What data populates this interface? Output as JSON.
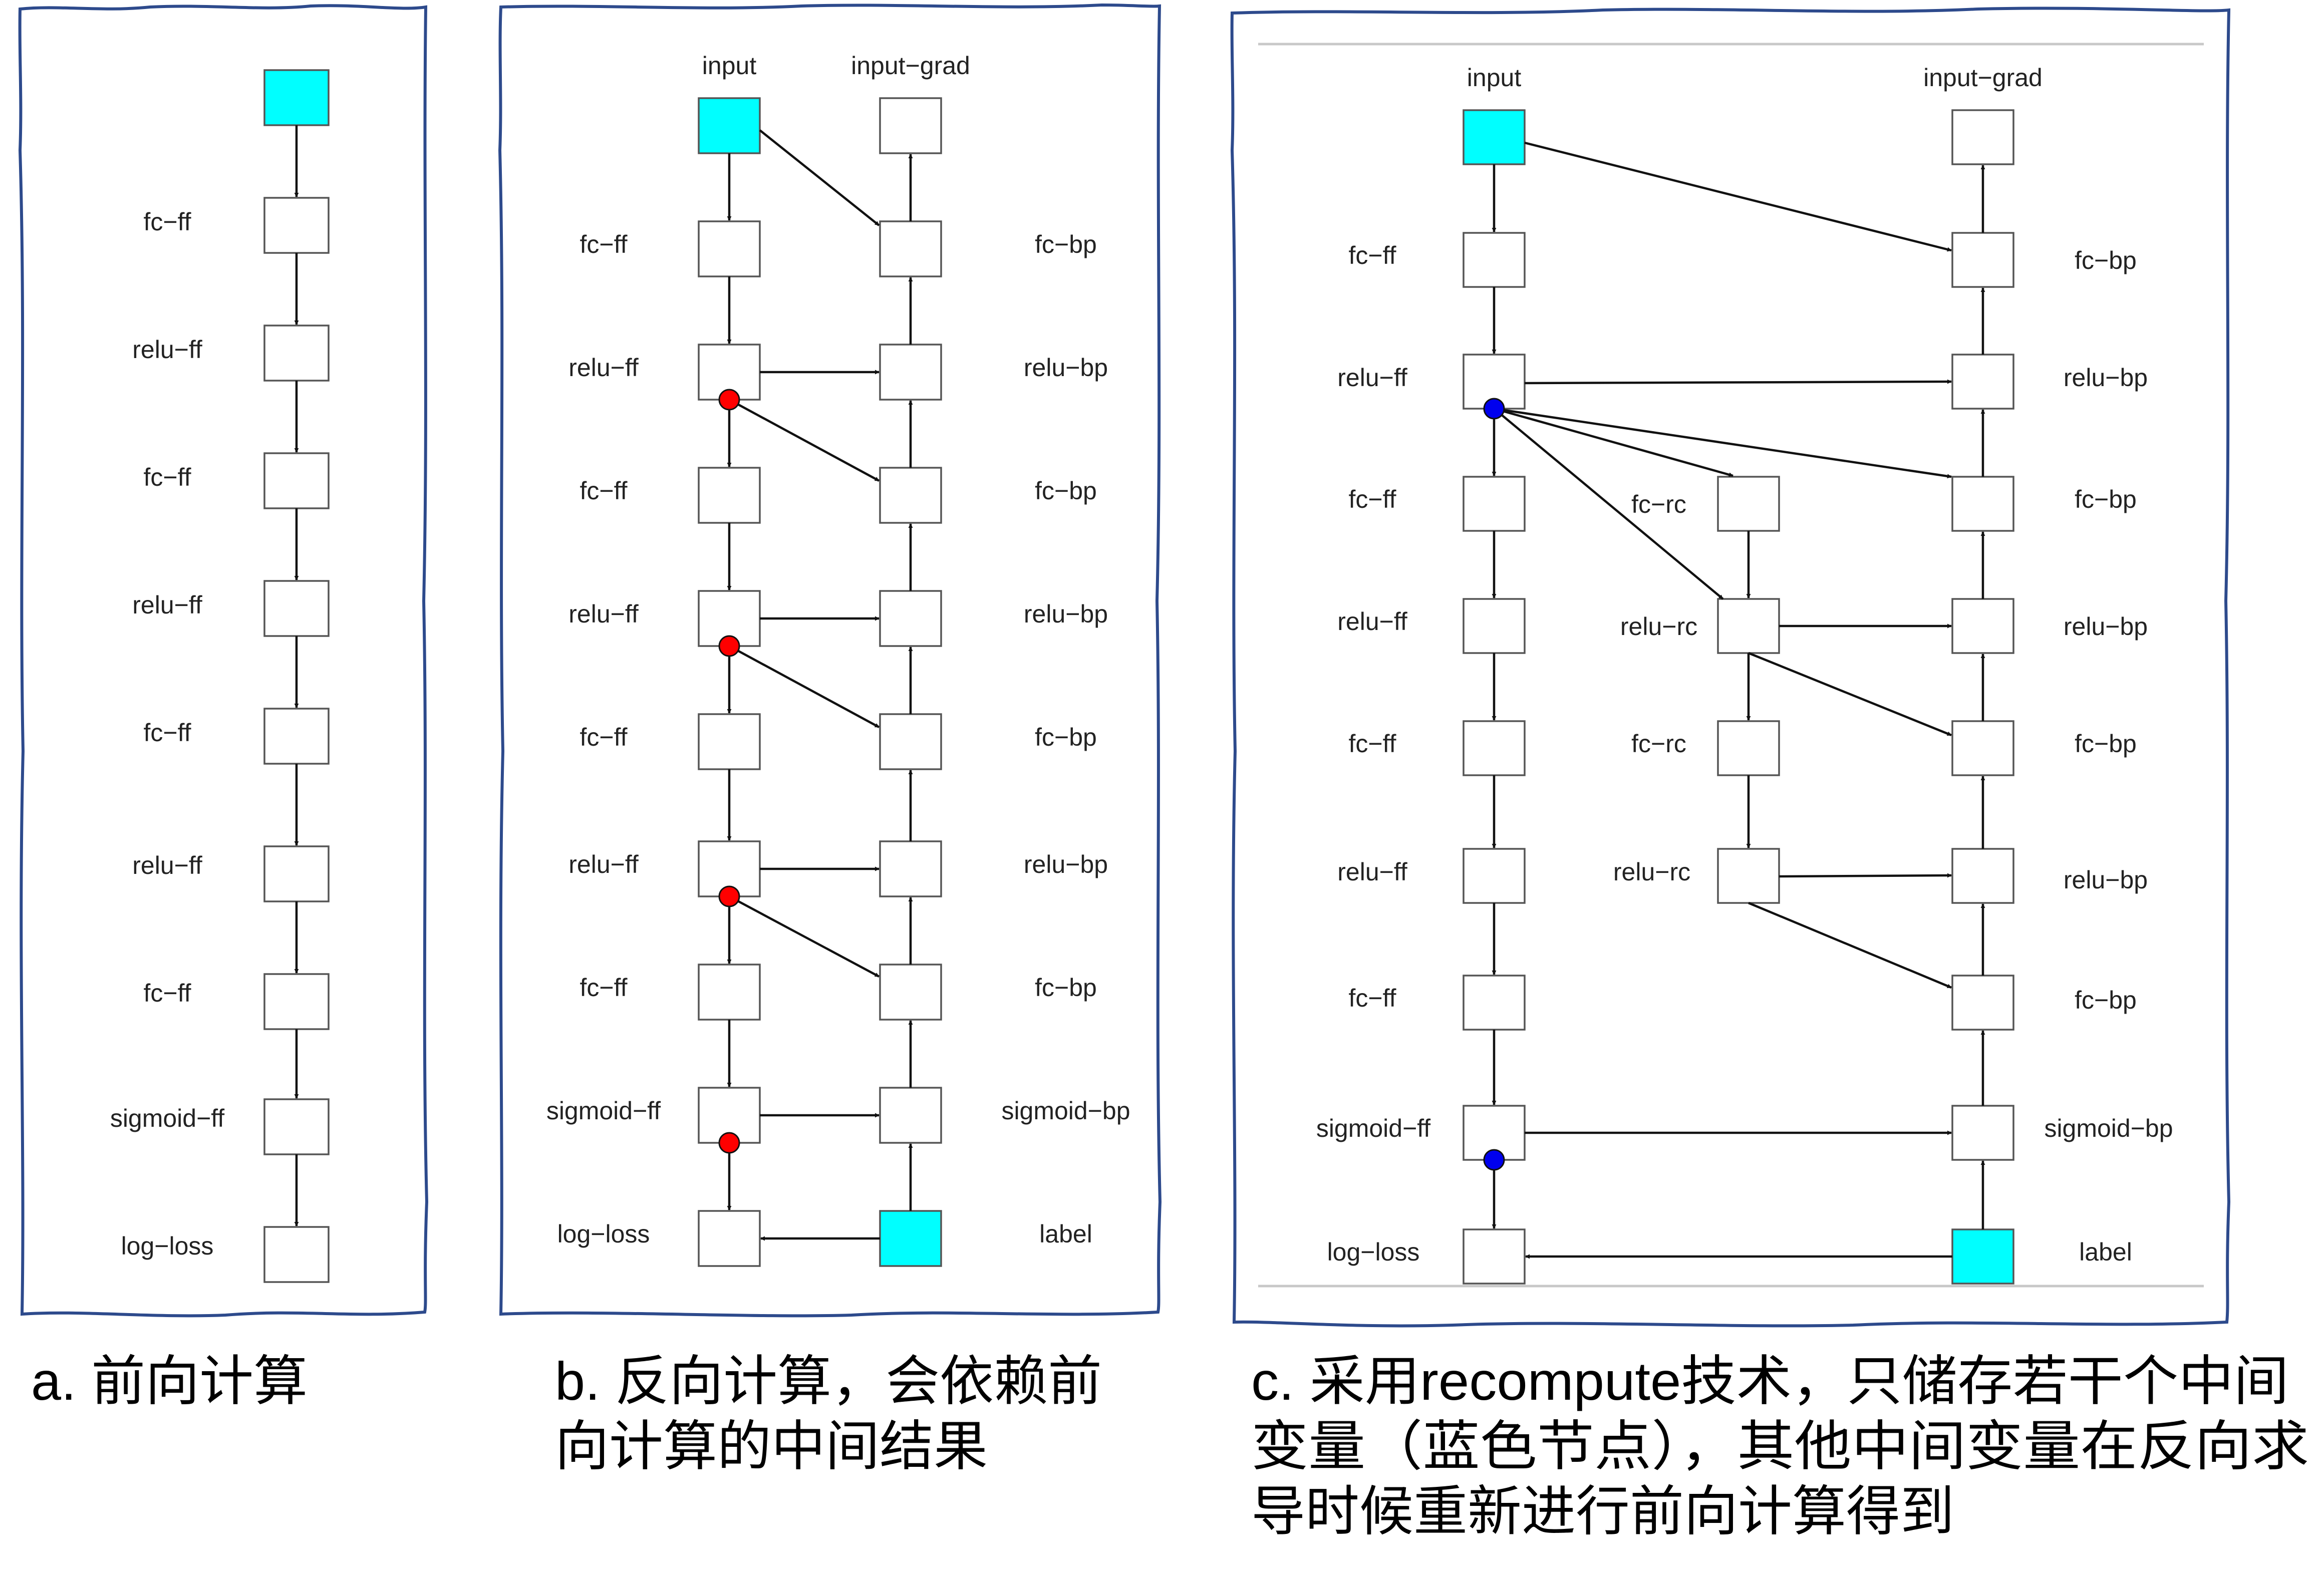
{
  "panel_a": {
    "labels": [
      "fc−ff",
      "relu−ff",
      "fc−ff",
      "relu−ff",
      "fc−ff",
      "relu−ff",
      "fc−ff",
      "sigmoid−ff",
      "log−loss"
    ]
  },
  "panel_b": {
    "input": "input",
    "input_grad": "input−grad",
    "left_labels": [
      "fc−ff",
      "relu−ff",
      "fc−ff",
      "relu−ff",
      "fc−ff",
      "relu−ff",
      "fc−ff",
      "sigmoid−ff",
      "log−loss"
    ],
    "right_labels": [
      "fc−bp",
      "relu−bp",
      "fc−bp",
      "relu−bp",
      "fc−bp",
      "relu−bp",
      "fc−bp",
      "sigmoid−bp",
      "label"
    ]
  },
  "panel_c": {
    "input": "input",
    "input_grad": "input−grad",
    "left_labels": [
      "fc−ff",
      "relu−ff",
      "fc−ff",
      "relu−ff",
      "fc−ff",
      "relu−ff",
      "fc−ff",
      "sigmoid−ff",
      "log−loss"
    ],
    "right_labels": [
      "fc−bp",
      "relu−bp",
      "fc−bp",
      "relu−bp",
      "fc−bp",
      "relu−bp",
      "fc−bp",
      "sigmoid−bp",
      "label"
    ],
    "middle_labels": [
      "fc−rc",
      "relu−rc",
      "fc−rc",
      "relu−rc"
    ]
  },
  "captions": {
    "a": [
      "a. 前向计算"
    ],
    "b": [
      "b. 反向计算，会依赖前",
      "向计算的中间结果"
    ],
    "c": [
      "c. 采用recompute技术，只储存若干个中间",
      "变量（蓝色节点），其他中间变量在反向求",
      "导时候重新进行前向计算得到"
    ]
  },
  "colors": {
    "frame": "#2d4a8c",
    "endpoint_node": "#00ffff",
    "stored_marker": "#ff0000",
    "recompute_marker": "#0000ee"
  }
}
